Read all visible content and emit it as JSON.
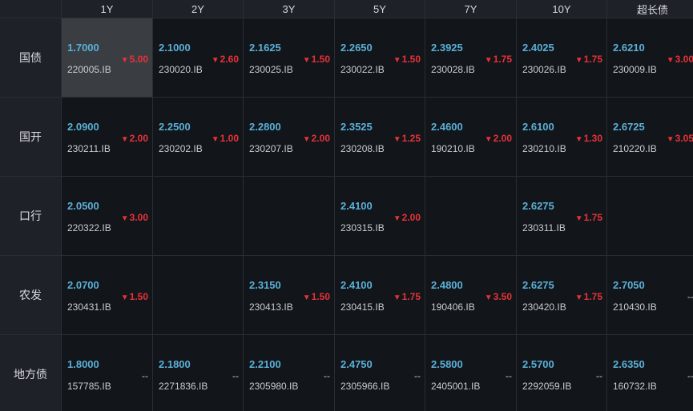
{
  "columns": [
    "1Y",
    "2Y",
    "3Y",
    "5Y",
    "7Y",
    "10Y",
    "超长债"
  ],
  "rows": [
    {
      "label": "国债",
      "cells": [
        {
          "yield": "1.7000",
          "code": "220005.IB",
          "change": "5.00",
          "dir": "down",
          "selected": true
        },
        {
          "yield": "2.1000",
          "code": "230020.IB",
          "change": "2.60",
          "dir": "down"
        },
        {
          "yield": "2.1625",
          "code": "230025.IB",
          "change": "1.50",
          "dir": "down"
        },
        {
          "yield": "2.2650",
          "code": "230022.IB",
          "change": "1.50",
          "dir": "down"
        },
        {
          "yield": "2.3925",
          "code": "230028.IB",
          "change": "1.75",
          "dir": "down"
        },
        {
          "yield": "2.4025",
          "code": "230026.IB",
          "change": "1.75",
          "dir": "down"
        },
        {
          "yield": "2.6210",
          "code": "230009.IB",
          "change": "3.00",
          "dir": "down"
        }
      ]
    },
    {
      "label": "国开",
      "cells": [
        {
          "yield": "2.0900",
          "code": "230211.IB",
          "change": "2.00",
          "dir": "down"
        },
        {
          "yield": "2.2500",
          "code": "230202.IB",
          "change": "1.00",
          "dir": "down"
        },
        {
          "yield": "2.2800",
          "code": "230207.IB",
          "change": "2.00",
          "dir": "down"
        },
        {
          "yield": "2.3525",
          "code": "230208.IB",
          "change": "1.25",
          "dir": "down"
        },
        {
          "yield": "2.4600",
          "code": "190210.IB",
          "change": "2.00",
          "dir": "down"
        },
        {
          "yield": "2.6100",
          "code": "230210.IB",
          "change": "1.30",
          "dir": "down"
        },
        {
          "yield": "2.6725",
          "code": "210220.IB",
          "change": "3.05",
          "dir": "down"
        }
      ]
    },
    {
      "label": "口行",
      "cells": [
        {
          "yield": "2.0500",
          "code": "220322.IB",
          "change": "3.00",
          "dir": "down"
        },
        null,
        null,
        {
          "yield": "2.4100",
          "code": "230315.IB",
          "change": "2.00",
          "dir": "down"
        },
        null,
        {
          "yield": "2.6275",
          "code": "230311.IB",
          "change": "1.75",
          "dir": "down"
        },
        null
      ]
    },
    {
      "label": "农发",
      "cells": [
        {
          "yield": "2.0700",
          "code": "230431.IB",
          "change": "1.50",
          "dir": "down"
        },
        null,
        {
          "yield": "2.3150",
          "code": "230413.IB",
          "change": "1.50",
          "dir": "down"
        },
        {
          "yield": "2.4100",
          "code": "230415.IB",
          "change": "1.75",
          "dir": "down"
        },
        {
          "yield": "2.4800",
          "code": "190406.IB",
          "change": "3.50",
          "dir": "down"
        },
        {
          "yield": "2.6275",
          "code": "230420.IB",
          "change": "1.75",
          "dir": "down"
        },
        {
          "yield": "2.7050",
          "code": "210430.IB",
          "change": "--",
          "dir": "none"
        }
      ]
    },
    {
      "label": "地方债",
      "cells": [
        {
          "yield": "1.8000",
          "code": "157785.IB",
          "change": "--",
          "dir": "none"
        },
        {
          "yield": "2.1800",
          "code": "2271836.IB",
          "change": "--",
          "dir": "none"
        },
        {
          "yield": "2.2100",
          "code": "2305980.IB",
          "change": "--",
          "dir": "none"
        },
        {
          "yield": "2.4750",
          "code": "2305966.IB",
          "change": "--",
          "dir": "none"
        },
        {
          "yield": "2.5800",
          "code": "2405001.IB",
          "change": "--",
          "dir": "none"
        },
        {
          "yield": "2.5700",
          "code": "2292059.IB",
          "change": "--",
          "dir": "none"
        },
        {
          "yield": "2.6350",
          "code": "160732.IB",
          "change": "--",
          "dir": "none"
        }
      ]
    }
  ],
  "colors": {
    "yield": "#5ab0d8",
    "down": "#e8323a",
    "background": "#121519",
    "header": "#1e2127",
    "selected": "#3a3d42"
  },
  "icons": {
    "down": "down-triangle-icon"
  }
}
